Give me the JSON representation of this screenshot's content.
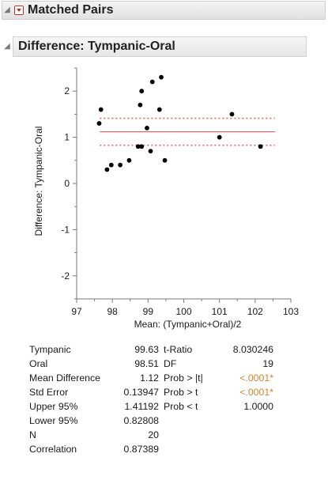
{
  "report": {
    "outer_title": "Matched Pairs",
    "inner_title": "Difference: Tympanic-Oral"
  },
  "chart_data": {
    "type": "scatter",
    "xlabel": "Mean: (Tympanic+Oral)/2",
    "ylabel": "Difference: Tympanic-Oral",
    "xlim": [
      97,
      103
    ],
    "ylim": [
      -2.5,
      2.5
    ],
    "x_ticks": [
      "97",
      "98",
      "99",
      "100",
      "101",
      "102",
      "103"
    ],
    "y_ticks": [
      "-2",
      "-1",
      "0",
      "1",
      "2"
    ],
    "grid": false,
    "mean_line": 1.12,
    "upper_95": 1.41192,
    "lower_95": 0.82808,
    "points": [
      {
        "x": 97.68,
        "y": 1.6
      },
      {
        "x": 97.63,
        "y": 1.3
      },
      {
        "x": 97.85,
        "y": 0.3
      },
      {
        "x": 97.97,
        "y": 0.4
      },
      {
        "x": 98.22,
        "y": 0.4
      },
      {
        "x": 98.47,
        "y": 0.5
      },
      {
        "x": 98.72,
        "y": 0.8
      },
      {
        "x": 98.82,
        "y": 0.8
      },
      {
        "x": 98.78,
        "y": 1.7
      },
      {
        "x": 98.82,
        "y": 2.0
      },
      {
        "x": 98.97,
        "y": 1.2
      },
      {
        "x": 99.07,
        "y": 0.7
      },
      {
        "x": 99.12,
        "y": 2.2
      },
      {
        "x": 99.32,
        "y": 1.6
      },
      {
        "x": 99.37,
        "y": 2.3
      },
      {
        "x": 99.47,
        "y": 0.5
      },
      {
        "x": 101.0,
        "y": 1.0
      },
      {
        "x": 101.35,
        "y": 1.5
      },
      {
        "x": 102.15,
        "y": 0.8
      }
    ],
    "colors": {
      "mean_line": "#e8646b",
      "ci_lines": "#e8646b",
      "points": "#000000"
    }
  },
  "stats": {
    "rows": [
      {
        "label": "Tympanic",
        "value": "99.63",
        "label2": "t-Ratio",
        "value2": "8.030246"
      },
      {
        "label": "Oral",
        "value": "98.51",
        "label2": "DF",
        "value2": "19"
      },
      {
        "label": "Mean Difference",
        "value": "1.12",
        "label2": "Prob > |t|",
        "value2": "<.0001*"
      },
      {
        "label": "Std Error",
        "value": "0.13947",
        "label2": "Prob > t",
        "value2": "<.0001*"
      },
      {
        "label": "Upper 95%",
        "value": "1.41192",
        "label2": "Prob < t",
        "value2": "1.0000"
      },
      {
        "label": "Lower 95%",
        "value": "0.82808",
        "label2": "",
        "value2": ""
      },
      {
        "label": "N",
        "value": "20",
        "label2": "",
        "value2": ""
      },
      {
        "label": "Correlation",
        "value": "0.87389",
        "label2": "",
        "value2": ""
      }
    ],
    "significant_color": "#d9822b"
  }
}
